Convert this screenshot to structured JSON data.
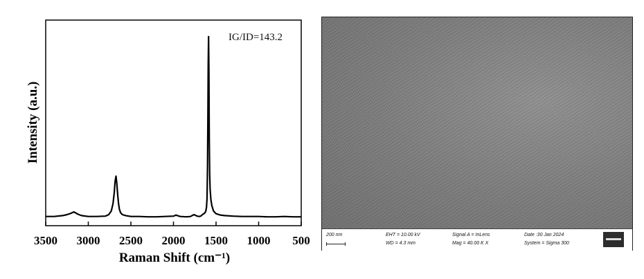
{
  "chart_data": {
    "type": "line",
    "xlabel": "Raman Shift (cm⁻¹)",
    "ylabel": "Intensity (a.u.)",
    "xlim": [
      3500,
      500
    ],
    "x_reversed": true,
    "xticks": [
      3500,
      3000,
      2500,
      2000,
      1500,
      1000,
      500
    ],
    "yticks": [],
    "ylim": [
      0,
      1.12
    ],
    "grid": false,
    "annotation": "IG/ID=143.2",
    "series": [
      {
        "x": [
          3500,
          3400,
          3300,
          3250,
          3200,
          3170,
          3150,
          3120,
          3080,
          3000,
          2900,
          2800,
          2760,
          2730,
          2710,
          2695,
          2685,
          2675,
          2665,
          2655,
          2645,
          2635,
          2620,
          2600,
          2560,
          2500,
          2400,
          2300,
          2200,
          2100,
          2000,
          1970,
          1950,
          1920,
          1850,
          1800,
          1760,
          1720,
          1700,
          1680,
          1660,
          1645,
          1630,
          1620,
          1612,
          1606,
          1600,
          1596,
          1592,
          1588,
          1584,
          1580,
          1575,
          1570,
          1560,
          1550,
          1530,
          1500,
          1450,
          1400,
          1300,
          1200,
          1100,
          1000,
          900,
          800,
          700,
          600,
          500
        ],
        "y": [
          0.02,
          0.02,
          0.025,
          0.03,
          0.038,
          0.045,
          0.04,
          0.032,
          0.025,
          0.02,
          0.02,
          0.022,
          0.03,
          0.05,
          0.09,
          0.15,
          0.21,
          0.24,
          0.2,
          0.14,
          0.09,
          0.06,
          0.04,
          0.03,
          0.025,
          0.02,
          0.02,
          0.018,
          0.018,
          0.02,
          0.022,
          0.028,
          0.024,
          0.02,
          0.018,
          0.02,
          0.03,
          0.022,
          0.02,
          0.022,
          0.03,
          0.035,
          0.04,
          0.05,
          0.07,
          0.12,
          0.3,
          0.55,
          0.85,
          1.0,
          0.8,
          0.45,
          0.25,
          0.17,
          0.11,
          0.08,
          0.05,
          0.035,
          0.028,
          0.025,
          0.022,
          0.02,
          0.02,
          0.02,
          0.018,
          0.018,
          0.02,
          0.018,
          0.018
        ]
      }
    ]
  },
  "sem": {
    "scale": "200 nm",
    "eht": "EHT = 10.00 kV",
    "wd": "WD = 4.3 mm",
    "signal": "Signal A = InLens",
    "mag": "Mag = 40.00 K X",
    "date": "Date :30 Jan 2024",
    "system": "System = Sigma 300"
  }
}
